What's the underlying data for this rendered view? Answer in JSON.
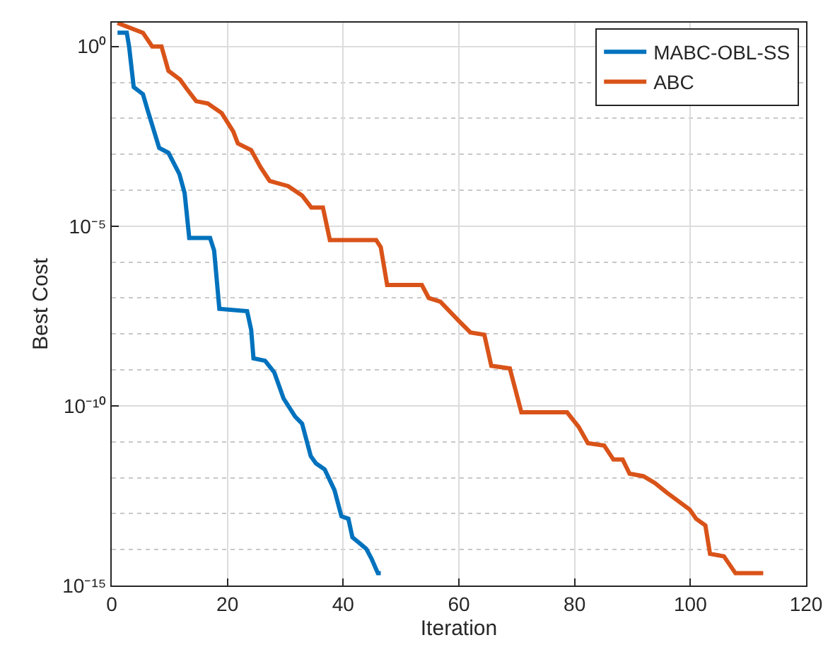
{
  "chart_data": {
    "type": "line",
    "xlabel": "Iteration",
    "ylabel": "Best Cost",
    "log": "y",
    "grid": true,
    "legend": "top right",
    "line_style": "solid",
    "marker": "none",
    "xlim": [
      0,
      120
    ],
    "xticks": [
      0,
      20,
      40,
      60,
      80,
      100,
      120
    ],
    "ylim": [
      1e-15,
      4.6
    ],
    "yticks": [
      {
        "value": 1e-15,
        "label": "10⁻¹⁵"
      },
      {
        "value": 1e-10,
        "label": "10⁻¹⁰"
      },
      {
        "value": 1e-05,
        "label": "10⁻⁵"
      },
      {
        "value": 1,
        "label": "10⁰"
      }
    ],
    "series": [
      {
        "name": "MABC-OBL-SS",
        "color": "#0072bd",
        "x": [
          1,
          2.6,
          3,
          3.8,
          5.4,
          6.2,
          8.2,
          9.8,
          11.7,
          12.6,
          13.4,
          17,
          17.7,
          18.6,
          23.4,
          24.1,
          24.5,
          26.5,
          28.1,
          29.7,
          31.7,
          32.9,
          34.4,
          35.3,
          36.8,
          38.5,
          39.7,
          40.9,
          41.6,
          43.3,
          44,
          44.9,
          46,
          46.5
        ],
        "values": [
          2.4,
          2.4,
          1,
          0.074,
          0.047,
          0.017,
          0.0015,
          0.0011,
          0.00028,
          8.3e-05,
          4.7e-06,
          4.7e-06,
          2.1e-06,
          5e-08,
          4.3e-08,
          1.3e-08,
          2.1e-09,
          1.8e-09,
          8.5e-10,
          1.6e-10,
          5e-11,
          3.2e-11,
          4e-12,
          2.5e-12,
          1.7e-12,
          4.5e-13,
          8.5e-14,
          7.2e-14,
          2.2e-14,
          1.3e-14,
          1.05e-14,
          5.6e-15,
          2.2e-15,
          2.2e-15
        ]
      },
      {
        "name": "ABC",
        "color": "#d95319",
        "x": [
          1,
          5.4,
          7,
          8.6,
          9.8,
          11.8,
          13,
          14.6,
          16.6,
          19,
          21,
          21.8,
          24.1,
          25.7,
          27.3,
          30.5,
          32.9,
          34.5,
          36.5,
          37.7,
          45.7,
          46.5,
          47.6,
          53.6,
          54.8,
          56.8,
          60,
          62,
          64.4,
          65.6,
          68.8,
          70.8,
          78.7,
          80.7,
          82.3,
          85.1,
          86.7,
          88.3,
          89.5,
          91.9,
          93.9,
          95.9,
          99.9,
          101,
          102.6,
          103.4,
          105.8,
          107.8,
          112.6
        ],
        "values": [
          4.5,
          2.4,
          1,
          1,
          0.21,
          0.12,
          0.065,
          0.03,
          0.026,
          0.014,
          0.0043,
          0.002,
          0.0013,
          0.00044,
          0.00018,
          0.00013,
          7.1e-05,
          3.3e-05,
          3.3e-05,
          4.1e-06,
          4.1e-06,
          2.6e-06,
          2.3e-07,
          2.3e-07,
          1e-07,
          7.9e-08,
          2.3e-08,
          1.1e-08,
          9.5e-09,
          1.3e-09,
          1.1e-09,
          6.6e-11,
          6.6e-11,
          2.6e-11,
          9.1e-12,
          7.9e-12,
          3.2e-12,
          3.2e-12,
          1.3e-12,
          1.1e-12,
          7.1e-13,
          3.9e-13,
          1.3e-13,
          7.2e-14,
          4.7e-14,
          7.6e-15,
          6.5e-15,
          2.2e-15,
          2.2e-15
        ]
      }
    ]
  }
}
